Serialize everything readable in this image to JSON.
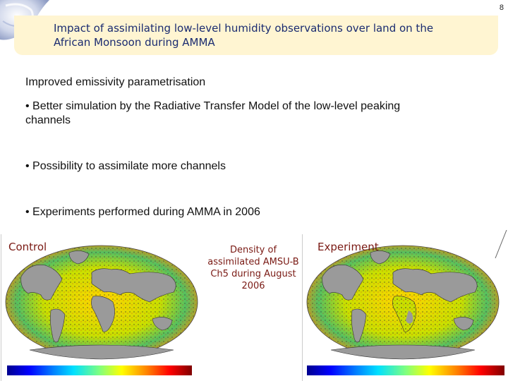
{
  "header": {
    "page_number": "8",
    "title_line1": "Impact of assimilating low-level humidity observations over land on the",
    "title_line2": "African Monsoon during AMMA"
  },
  "body": {
    "heading": "Improved emissivity parametrisation",
    "bullet1_line1": "• Better simulation by the Radiative Transfer Model of the low-level peaking",
    "bullet1_line2": "channels",
    "bullet2": "• Possibility to assimilate more channels",
    "bullet3": "• Experiments performed during AMMA in 2006"
  },
  "figure": {
    "left_label": "Control",
    "right_label": "Experiment",
    "caption_line1": "Density of",
    "caption_line2": "assimilated AMSU-B",
    "caption_line3": "Ch5 during August",
    "caption_line4": "2006"
  },
  "colors": {
    "title_text": "#1a2b70",
    "banner": "#fff5d2",
    "label_text": "#7a1a14",
    "ocean_low": "#ffe000",
    "land": "#9a9a9a"
  }
}
